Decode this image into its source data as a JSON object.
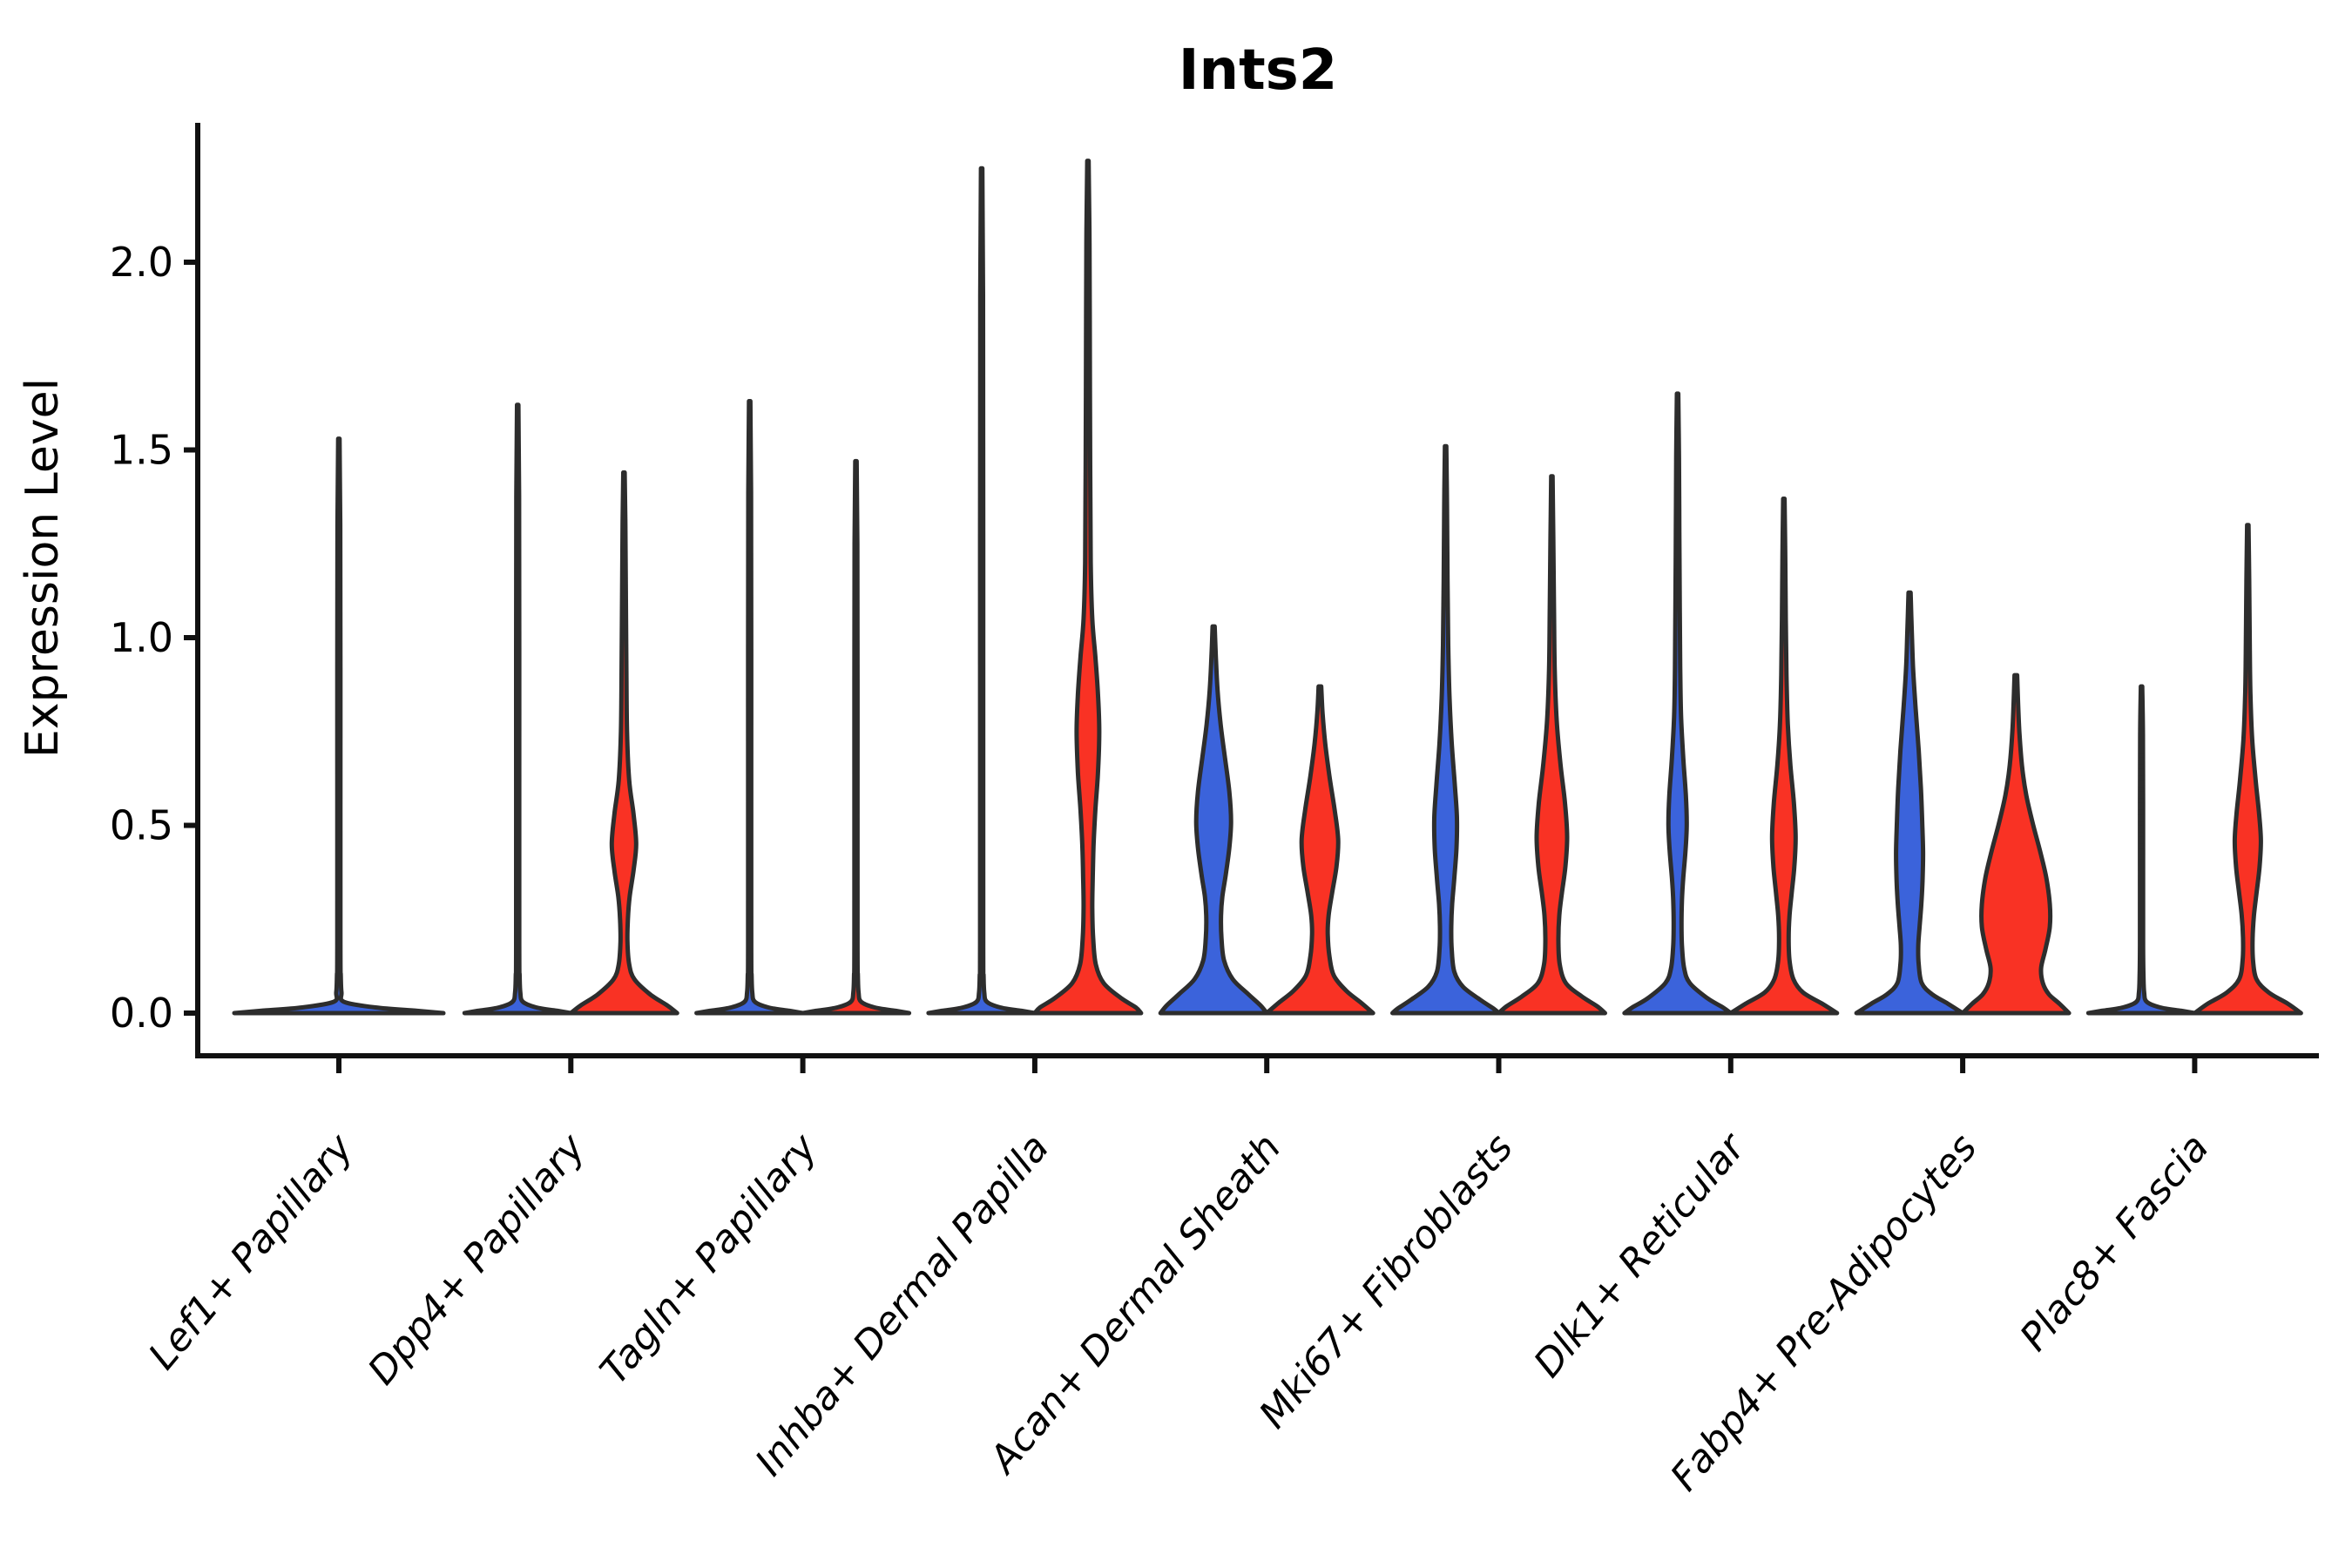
{
  "title": "Ints2",
  "y_axis": {
    "label": "Expression Level",
    "ticks": [
      {
        "label": "0.0",
        "value": 0.0
      },
      {
        "label": "0.5",
        "value": 0.5
      },
      {
        "label": "1.0",
        "value": 1.0
      },
      {
        "label": "1.5",
        "value": 1.5
      },
      {
        "label": "2.0",
        "value": 2.0
      }
    ]
  },
  "x_axis": {
    "categories": [
      "Lef1+ Papillary",
      "Dpp4+ Papillary",
      "Tagln+ Papillary",
      "Inhba+ Dermal Papilla",
      "Acan+ Dermal Sheath",
      "Mki67+ Fibroblasts",
      "Dlk1+ Reticular",
      "Fabp4+ Pre-Adipocytes",
      "Plac8+ Fascia"
    ]
  },
  "palette": {
    "blue": "#3B63DB",
    "red": "#F93224",
    "outline": "#2D2D2D",
    "axis": "#111111",
    "text": "#000000"
  },
  "chart_data": {
    "type": "violin",
    "title": "Ints2",
    "ylabel": "Expression Level",
    "ylim": [
      -0.12,
      2.37
    ],
    "grid": false,
    "legend": "none",
    "categories": [
      "Lef1+ Papillary",
      "Dpp4+ Papillary",
      "Tagln+ Papillary",
      "Inhba+ Dermal Papilla",
      "Acan+ Dermal Sheath",
      "Mki67+ Fibroblasts",
      "Dlk1+ Reticular",
      "Fabp4+ Pre-Adipocytes",
      "Plac8+ Fascia"
    ],
    "series_colors": [
      "blue",
      "red"
    ],
    "violins": [
      {
        "category": 0,
        "color": "blue",
        "position": "center",
        "max_expression": 1.53,
        "collapsed": true,
        "base_half_width": 120
      },
      {
        "category": 1,
        "color": "blue",
        "position": "left",
        "max_expression": 1.62,
        "collapsed": true,
        "base_half_width": 61
      },
      {
        "category": 1,
        "color": "red",
        "position": "right",
        "max_expression": 1.44,
        "collapsed": false,
        "profile": [
          [
            1.44,
            0.8
          ],
          [
            1.3,
            1.6
          ],
          [
            1.1,
            2.2
          ],
          [
            0.9,
            2.8
          ],
          [
            0.75,
            3.5
          ],
          [
            0.62,
            6
          ],
          [
            0.53,
            11
          ],
          [
            0.45,
            14
          ],
          [
            0.38,
            11
          ],
          [
            0.31,
            6.5
          ],
          [
            0.25,
            4.5
          ],
          [
            0.19,
            4
          ],
          [
            0.13,
            6
          ],
          [
            0.09,
            12
          ],
          [
            0.05,
            30
          ],
          [
            0.02,
            50
          ],
          [
            0,
            61
          ]
        ]
      },
      {
        "category": 2,
        "color": "blue",
        "position": "left",
        "max_expression": 1.63,
        "collapsed": true,
        "base_half_width": 61
      },
      {
        "category": 2,
        "color": "red",
        "position": "right",
        "max_expression": 1.47,
        "collapsed": true,
        "base_half_width": 61
      },
      {
        "category": 3,
        "color": "blue",
        "position": "left",
        "max_expression": 2.25,
        "collapsed": true,
        "base_half_width": 61
      },
      {
        "category": 3,
        "color": "red",
        "position": "right",
        "max_expression": 2.27,
        "collapsed": false,
        "profile": [
          [
            2.27,
            0.8
          ],
          [
            2.05,
            1.8
          ],
          [
            1.75,
            2.2
          ],
          [
            1.45,
            2.6
          ],
          [
            1.2,
            3.2
          ],
          [
            1.05,
            5
          ],
          [
            0.95,
            8.5
          ],
          [
            0.85,
            11.5
          ],
          [
            0.75,
            13
          ],
          [
            0.64,
            11.5
          ],
          [
            0.54,
            8.5
          ],
          [
            0.45,
            6.5
          ],
          [
            0.36,
            5.5
          ],
          [
            0.28,
            5
          ],
          [
            0.2,
            6
          ],
          [
            0.13,
            9
          ],
          [
            0.08,
            18
          ],
          [
            0.04,
            38
          ],
          [
            0.015,
            55
          ],
          [
            0,
            61
          ]
        ]
      },
      {
        "category": 4,
        "color": "blue",
        "position": "left",
        "max_expression": 1.03,
        "collapsed": false,
        "profile": [
          [
            1.03,
            1.2
          ],
          [
            0.95,
            2.5
          ],
          [
            0.86,
            4.5
          ],
          [
            0.77,
            8
          ],
          [
            0.68,
            13
          ],
          [
            0.59,
            18
          ],
          [
            0.51,
            20
          ],
          [
            0.44,
            18
          ],
          [
            0.37,
            14
          ],
          [
            0.31,
            10
          ],
          [
            0.26,
            8.5
          ],
          [
            0.2,
            9
          ],
          [
            0.14,
            12
          ],
          [
            0.09,
            22
          ],
          [
            0.05,
            40
          ],
          [
            0.02,
            54
          ],
          [
            0,
            61
          ]
        ]
      },
      {
        "category": 4,
        "color": "red",
        "position": "right",
        "max_expression": 0.87,
        "collapsed": false,
        "profile": [
          [
            0.87,
            1.5
          ],
          [
            0.8,
            3
          ],
          [
            0.72,
            6
          ],
          [
            0.63,
            11
          ],
          [
            0.54,
            17
          ],
          [
            0.46,
            21
          ],
          [
            0.39,
            19
          ],
          [
            0.32,
            14
          ],
          [
            0.26,
            10
          ],
          [
            0.21,
            9
          ],
          [
            0.15,
            11
          ],
          [
            0.1,
            16
          ],
          [
            0.06,
            30
          ],
          [
            0.03,
            46
          ],
          [
            0,
            61
          ]
        ]
      },
      {
        "category": 5,
        "color": "blue",
        "position": "left",
        "max_expression": 1.51,
        "collapsed": false,
        "profile": [
          [
            1.51,
            0.8
          ],
          [
            1.35,
            1.6
          ],
          [
            1.15,
            2.2
          ],
          [
            0.98,
            3
          ],
          [
            0.84,
            4.5
          ],
          [
            0.72,
            7
          ],
          [
            0.61,
            10.5
          ],
          [
            0.52,
            13
          ],
          [
            0.44,
            12.5
          ],
          [
            0.36,
            10
          ],
          [
            0.29,
            7.5
          ],
          [
            0.23,
            6.5
          ],
          [
            0.17,
            7
          ],
          [
            0.11,
            10
          ],
          [
            0.07,
            20
          ],
          [
            0.035,
            40
          ],
          [
            0.012,
            55
          ],
          [
            0,
            61
          ]
        ]
      },
      {
        "category": 5,
        "color": "red",
        "position": "right",
        "max_expression": 1.43,
        "collapsed": false,
        "profile": [
          [
            1.43,
            0.8
          ],
          [
            1.27,
            1.6
          ],
          [
            1.08,
            2.4
          ],
          [
            0.92,
            3.2
          ],
          [
            0.78,
            5.5
          ],
          [
            0.66,
            10
          ],
          [
            0.56,
            15
          ],
          [
            0.47,
            17.5
          ],
          [
            0.39,
            15.5
          ],
          [
            0.32,
            11.5
          ],
          [
            0.26,
            8.5
          ],
          [
            0.19,
            7.5
          ],
          [
            0.13,
            9
          ],
          [
            0.08,
            16
          ],
          [
            0.045,
            34
          ],
          [
            0.018,
            52
          ],
          [
            0,
            61
          ]
        ]
      },
      {
        "category": 6,
        "color": "blue",
        "position": "left",
        "max_expression": 1.65,
        "collapsed": false,
        "profile": [
          [
            1.65,
            0.8
          ],
          [
            1.48,
            1.6
          ],
          [
            1.28,
            2
          ],
          [
            1.08,
            2.5
          ],
          [
            0.92,
            3
          ],
          [
            0.79,
            4
          ],
          [
            0.68,
            6.5
          ],
          [
            0.58,
            9.5
          ],
          [
            0.5,
            10.5
          ],
          [
            0.43,
            9
          ],
          [
            0.36,
            6.5
          ],
          [
            0.3,
            5
          ],
          [
            0.24,
            4.5
          ],
          [
            0.18,
            5
          ],
          [
            0.12,
            7.5
          ],
          [
            0.08,
            14
          ],
          [
            0.04,
            34
          ],
          [
            0.015,
            52
          ],
          [
            0,
            61
          ]
        ]
      },
      {
        "category": 6,
        "color": "red",
        "position": "right",
        "max_expression": 1.37,
        "collapsed": false,
        "profile": [
          [
            1.37,
            0.8
          ],
          [
            1.22,
            1.6
          ],
          [
            1.05,
            2.2
          ],
          [
            0.9,
            3
          ],
          [
            0.77,
            4.5
          ],
          [
            0.66,
            7.5
          ],
          [
            0.56,
            11.5
          ],
          [
            0.47,
            13.5
          ],
          [
            0.39,
            12
          ],
          [
            0.32,
            9
          ],
          [
            0.26,
            6.5
          ],
          [
            0.2,
            5.5
          ],
          [
            0.14,
            6.5
          ],
          [
            0.09,
            11
          ],
          [
            0.055,
            22
          ],
          [
            0.025,
            44
          ],
          [
            0,
            61
          ]
        ]
      },
      {
        "category": 7,
        "color": "blue",
        "position": "left",
        "max_expression": 1.12,
        "collapsed": false,
        "profile": [
          [
            1.12,
            1.2
          ],
          [
            1.02,
            2.5
          ],
          [
            0.92,
            4
          ],
          [
            0.81,
            7
          ],
          [
            0.7,
            10.5
          ],
          [
            0.6,
            13
          ],
          [
            0.51,
            14.5
          ],
          [
            0.43,
            15.5
          ],
          [
            0.36,
            15
          ],
          [
            0.29,
            13.5
          ],
          [
            0.23,
            11.5
          ],
          [
            0.18,
            10
          ],
          [
            0.13,
            10.5
          ],
          [
            0.08,
            14
          ],
          [
            0.05,
            26
          ],
          [
            0.025,
            44
          ],
          [
            0,
            61
          ]
        ]
      },
      {
        "category": 7,
        "color": "red",
        "position": "right",
        "max_expression": 0.9,
        "collapsed": false,
        "profile": [
          [
            0.9,
            1.5
          ],
          [
            0.83,
            2.5
          ],
          [
            0.75,
            4
          ],
          [
            0.66,
            7
          ],
          [
            0.58,
            12
          ],
          [
            0.5,
            20
          ],
          [
            0.43,
            28
          ],
          [
            0.36,
            35
          ],
          [
            0.29,
            39
          ],
          [
            0.23,
            39
          ],
          [
            0.17,
            34
          ],
          [
            0.12,
            29
          ],
          [
            0.08,
            31
          ],
          [
            0.05,
            38
          ],
          [
            0.025,
            50
          ],
          [
            0,
            61
          ]
        ]
      },
      {
        "category": 8,
        "color": "blue",
        "position": "left",
        "max_expression": 0.87,
        "collapsed": true,
        "base_half_width": 61,
        "point_stack_range": [
          0.41,
          0.71
        ]
      },
      {
        "category": 8,
        "color": "red",
        "position": "right",
        "max_expression": 1.3,
        "collapsed": false,
        "profile": [
          [
            1.3,
            0.8
          ],
          [
            1.15,
            1.6
          ],
          [
            0.99,
            2.2
          ],
          [
            0.85,
            3
          ],
          [
            0.73,
            5
          ],
          [
            0.62,
            9
          ],
          [
            0.53,
            13
          ],
          [
            0.46,
            15
          ],
          [
            0.39,
            13.5
          ],
          [
            0.32,
            10
          ],
          [
            0.26,
            7
          ],
          [
            0.2,
            5.5
          ],
          [
            0.14,
            6
          ],
          [
            0.09,
            10
          ],
          [
            0.055,
            24
          ],
          [
            0.025,
            46
          ],
          [
            0,
            61
          ]
        ]
      }
    ]
  }
}
